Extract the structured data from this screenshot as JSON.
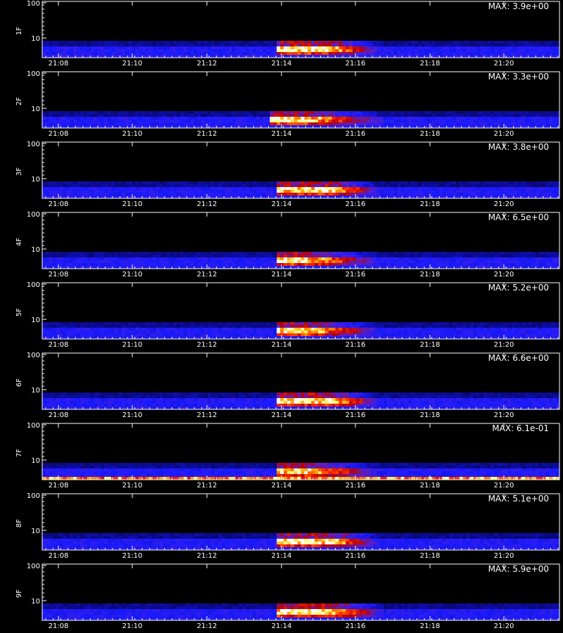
{
  "chart_data": {
    "type": "heatmap",
    "footer": "",
    "time_ticks": [
      "21:08",
      "21:10",
      "21:12",
      "21:14",
      "21:16",
      "21:18",
      "21:20"
    ],
    "y_ticks": [
      "100",
      "10"
    ],
    "y_scale": "log",
    "colormap": [
      "#000000",
      "#0a0a8c",
      "#1a1aff",
      "#5a20c8",
      "#b40010",
      "#ff2a00",
      "#ff9a00",
      "#ffff80",
      "#ffffff"
    ],
    "panels": [
      {
        "label": "1F",
        "max": "MAX: 3.9e+00",
        "event": {
          "t0": 0.45,
          "t1": 0.65,
          "peak": 0.55
        }
      },
      {
        "label": "2F",
        "max": "MAX: 3.3e+00",
        "event": {
          "t0": 0.44,
          "t1": 0.66,
          "peak": 0.5
        }
      },
      {
        "label": "3F",
        "max": "MAX: 3.8e+00",
        "event": {
          "t0": 0.45,
          "t1": 0.65,
          "peak": 0.55
        }
      },
      {
        "label": "4F",
        "max": "MAX: 6.5e+00",
        "event": {
          "t0": 0.45,
          "t1": 0.65,
          "peak": 0.5
        }
      },
      {
        "label": "5F",
        "max": "MAX: 5.2e+00",
        "event": {
          "t0": 0.45,
          "t1": 0.65,
          "peak": 0.5
        }
      },
      {
        "label": "6F",
        "max": "MAX: 6.6e+00",
        "event": {
          "t0": 0.45,
          "t1": 0.65,
          "peak": 0.55
        }
      },
      {
        "label": "7F",
        "max": "MAX: 6.1e-01",
        "event": {
          "t0": 0.45,
          "t1": 0.65,
          "peak": 0.5
        }
      },
      {
        "label": "8F",
        "max": "MAX: 5.1e+00",
        "event": {
          "t0": 0.45,
          "t1": 0.65,
          "peak": 0.55
        }
      },
      {
        "label": "9F",
        "max": "MAX: 5.9e+00",
        "event": {
          "t0": 0.45,
          "t1": 0.66,
          "peak": 0.55
        }
      }
    ]
  }
}
